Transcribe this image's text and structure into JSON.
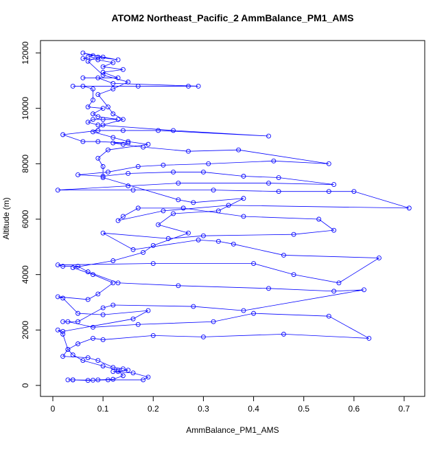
{
  "chart_data": {
    "type": "line",
    "title": "ATOM2 Northeast_Pacific_2 AmmBalance_PM1_AMS",
    "x_label": "AmmBalance_PM1_AMS",
    "y_label": "Altitude (m)",
    "xlim": [
      -0.0246,
      0.741
    ],
    "ylim": [
      -397,
      12447
    ],
    "xticks": [
      0.0,
      0.1,
      0.2,
      0.3,
      0.4,
      0.5,
      0.6,
      0.7
    ],
    "yticks": [
      0,
      2000,
      4000,
      6000,
      8000,
      10000,
      12000
    ],
    "grid": false,
    "x": [
      0.03,
      0.04,
      0.07,
      0.09,
      0.12,
      0.14,
      0.13,
      0.1,
      0.06,
      0.04,
      0.03,
      0.05,
      0.08,
      0.1,
      0.2,
      0.3,
      0.46,
      0.63,
      0.55,
      0.4,
      0.32,
      0.17,
      0.08,
      0.03,
      0.02,
      0.05,
      0.1,
      0.12,
      0.28,
      0.38,
      0.62,
      0.56,
      0.43,
      0.25,
      0.13,
      0.07,
      0.05,
      0.02,
      0.01,
      0.2,
      0.4,
      0.48,
      0.57,
      0.65,
      0.46,
      0.36,
      0.33,
      0.29,
      0.16,
      0.1,
      0.23,
      0.3,
      0.48,
      0.56,
      0.53,
      0.38,
      0.26,
      0.17,
      0.14,
      0.13,
      0.22,
      0.35,
      0.71,
      0.6,
      0.55,
      0.45,
      0.32,
      0.16,
      0.01,
      0.15,
      0.25,
      0.43,
      0.56,
      0.45,
      0.38,
      0.3,
      0.24,
      0.15,
      0.1,
      0.05,
      0.11,
      0.17,
      0.22,
      0.31,
      0.44,
      0.55,
      0.37,
      0.27,
      0.18,
      0.14,
      0.12,
      0.15,
      0.09,
      0.06,
      0.02,
      0.09,
      0.14,
      0.21,
      0.43,
      0.24,
      0.09,
      0.07,
      0.08,
      0.1,
      0.13,
      0.09,
      0.08,
      0.1,
      0.07,
      0.08,
      0.08,
      0.06,
      0.04,
      0.17,
      0.27,
      0.29,
      0.12,
      0.09,
      0.06,
      0.13,
      0.1,
      0.14,
      0.1,
      0.12,
      0.09,
      0.06,
      0.07,
      0.08,
      0.06,
      0.1,
      0.13,
      0.09,
      0.07,
      0.1,
      0.15,
      0.12,
      0.09,
      0.11,
      0.12,
      0.14,
      0.1,
      0.08,
      0.12,
      0.15,
      0.19,
      0.11,
      0.09,
      0.1,
      0.1,
      0.25,
      0.28,
      0.38,
      0.33,
      0.24,
      0.21,
      0.27,
      0.2,
      0.18,
      0.12,
      0.04,
      0.08,
      0.12,
      0.09,
      0.07,
      0.01,
      0.02,
      0.05,
      0.1,
      0.19,
      0.16,
      0.02,
      0.01,
      0.02,
      0.03,
      0.02,
      0.07,
      0.09,
      0.12,
      0.14,
      0.15,
      0.13,
      0.12,
      0.16,
      0.19,
      0.18,
      0.11,
      0.08,
      0.04
    ],
    "series": [
      {
        "name": "AmmBalance_PM1_AMS",
        "color": "#0000ff",
        "values": [
          200,
          200,
          180,
          200,
          220,
          350,
          550,
          700,
          900,
          1100,
          1300,
          1500,
          1700,
          1650,
          1800,
          1750,
          1850,
          1700,
          2500,
          2600,
          2300,
          2200,
          2100,
          2300,
          2300,
          2300,
          2800,
          2900,
          2850,
          2700,
          3450,
          3400,
          3500,
          3600,
          3700,
          4100,
          4300,
          4300,
          4350,
          4400,
          4400,
          4000,
          3700,
          4600,
          4700,
          5100,
          5200,
          5250,
          4900,
          5500,
          5300,
          5400,
          5450,
          5600,
          6000,
          6100,
          6400,
          6400,
          6100,
          5950,
          6300,
          6500,
          6400,
          7000,
          7000,
          7000,
          7050,
          7050,
          7050,
          7200,
          7300,
          7300,
          7250,
          7500,
          7550,
          7700,
          7700,
          7650,
          7550,
          7600,
          7700,
          7900,
          7950,
          8000,
          8100,
          8000,
          8500,
          8450,
          8600,
          8700,
          8750,
          8750,
          8800,
          8800,
          9050,
          9200,
          9200,
          9200,
          9000,
          9200,
          9400,
          9500,
          9600,
          9600,
          9600,
          9700,
          9800,
          10000,
          10050,
          10300,
          10700,
          10800,
          10800,
          10800,
          10800,
          10800,
          10900,
          11100,
          11100,
          11100,
          11300,
          11400,
          11500,
          11650,
          11750,
          11800,
          11850,
          11900,
          12000,
          11850,
          11750,
          11850,
          11700,
          11200,
          10950,
          10700,
          10500,
          10050,
          9800,
          9600,
          9400,
          9150,
          8950,
          8800,
          8700,
          8500,
          8200,
          7900,
          7500,
          6700,
          6600,
          6750,
          6300,
          6200,
          5800,
          5500,
          5050,
          4800,
          4500,
          4250,
          4000,
          3700,
          3300,
          3100,
          3200,
          3150,
          2600,
          2550,
          2700,
          2400,
          1950,
          2000,
          1850,
          1300,
          1050,
          1000,
          900,
          650,
          600,
          550,
          500,
          500,
          450,
          300,
          200,
          200,
          190,
          200
        ]
      }
    ]
  }
}
